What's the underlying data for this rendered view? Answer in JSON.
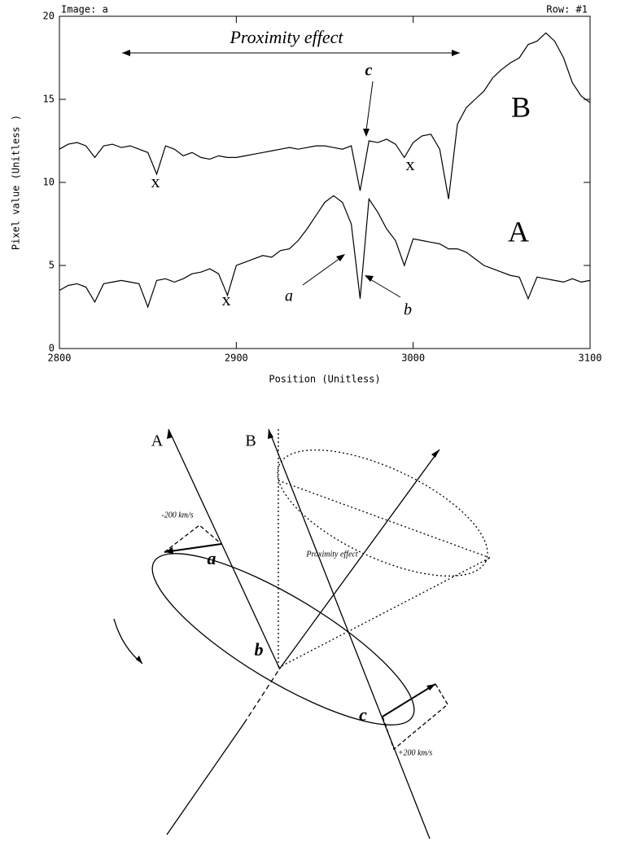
{
  "chart_data": {
    "type": "line",
    "header_left": "Image: a",
    "header_right": "Row: #1",
    "xlabel": "Position (Unitless)",
    "ylabel": "Pixel value (Unitless )",
    "xlim": [
      2800,
      3100
    ],
    "xticks": [
      2800,
      2900,
      3000,
      3100
    ],
    "ylim": [
      0,
      20
    ],
    "yticks": [
      0,
      5,
      10,
      15,
      20
    ],
    "annotations": [
      "Proximity effect",
      "c",
      "x",
      "x",
      "x",
      "a",
      "b"
    ],
    "x": [
      2800,
      2805,
      2810,
      2815,
      2820,
      2825,
      2830,
      2835,
      2840,
      2845,
      2850,
      2855,
      2860,
      2865,
      2870,
      2875,
      2880,
      2885,
      2890,
      2895,
      2900,
      2905,
      2910,
      2915,
      2920,
      2925,
      2930,
      2935,
      2940,
      2945,
      2950,
      2955,
      2960,
      2965,
      2970,
      2975,
      2980,
      2985,
      2990,
      2995,
      3000,
      3005,
      3010,
      3015,
      3020,
      3025,
      3030,
      3035,
      3040,
      3045,
      3050,
      3055,
      3060,
      3065,
      3070,
      3075,
      3080,
      3085,
      3090,
      3095,
      3100
    ],
    "series": [
      {
        "name": "B",
        "color": "#000000",
        "values": [
          12,
          12.3,
          12.4,
          12.2,
          11.5,
          12.2,
          12.3,
          12.1,
          12.2,
          12.0,
          11.8,
          10.5,
          12.2,
          12.0,
          11.6,
          11.8,
          11.5,
          11.4,
          11.6,
          11.5,
          11.5,
          11.6,
          11.7,
          11.8,
          11.9,
          12.0,
          12.1,
          12.0,
          12.1,
          12.2,
          12.2,
          12.1,
          12.0,
          12.2,
          9.5,
          12.5,
          12.4,
          12.6,
          12.3,
          11.5,
          12.4,
          12.8,
          12.9,
          12.0,
          9.0,
          13.5,
          14.5,
          15.0,
          15.5,
          16.3,
          16.8,
          17.2,
          17.5,
          18.3,
          18.5,
          19.0,
          18.5,
          17.5,
          16.0,
          15.2,
          14.8
        ]
      },
      {
        "name": "A",
        "color": "#000000",
        "values": [
          3.5,
          3.8,
          3.9,
          3.7,
          2.8,
          3.9,
          4.0,
          4.1,
          4.0,
          3.9,
          2.5,
          4.1,
          4.2,
          4.0,
          4.2,
          4.5,
          4.6,
          4.8,
          4.5,
          3.2,
          5.0,
          5.2,
          5.4,
          5.6,
          5.5,
          5.9,
          6.0,
          6.5,
          7.2,
          8.0,
          8.8,
          9.2,
          8.8,
          7.5,
          3.0,
          9.0,
          8.2,
          7.2,
          6.5,
          5.0,
          6.6,
          6.5,
          6.4,
          6.3,
          6.0,
          6.0,
          5.8,
          5.4,
          5.0,
          4.8,
          4.6,
          4.4,
          4.3,
          3.0,
          4.3,
          4.2,
          4.1,
          4.0,
          4.2,
          4.0,
          4.1
        ]
      }
    ]
  },
  "diagram": {
    "labels": [
      "A",
      "B",
      "-200 km/s",
      "a",
      "Proximity effect",
      "b",
      "c",
      "+200 km/s"
    ]
  }
}
